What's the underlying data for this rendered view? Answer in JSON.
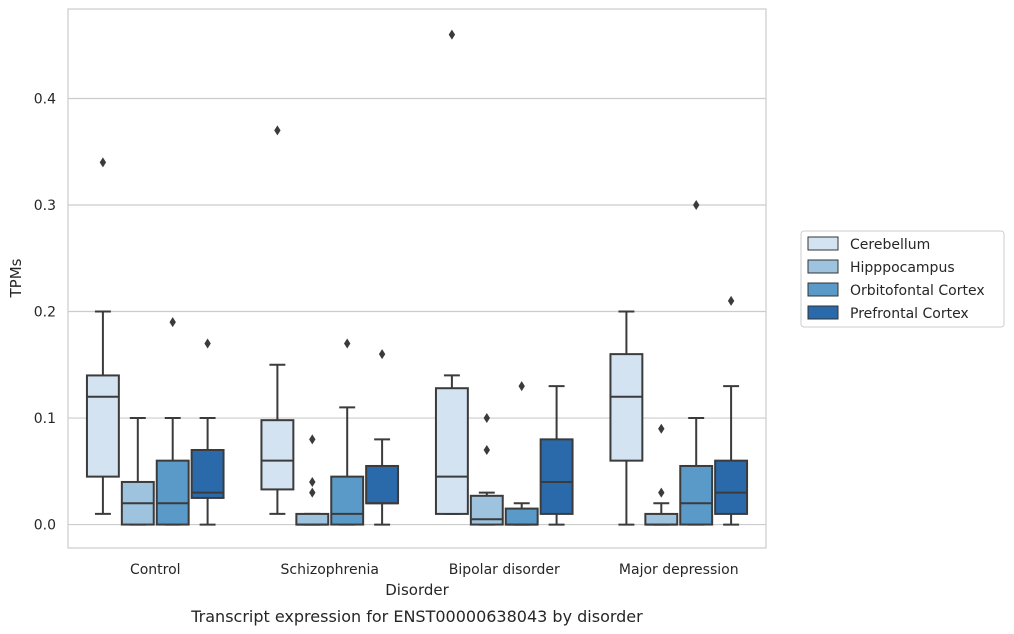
{
  "caption": "Transcript expression for ENST00000638043 by disorder",
  "chart_data": {
    "type": "box",
    "title": "",
    "xlabel": "Disorder",
    "ylabel": "TPMs",
    "ylim": [
      -0.022,
      0.484
    ],
    "yticks": [
      0.0,
      0.1,
      0.2,
      0.3,
      0.4
    ],
    "ytick_labels": [
      "0.0",
      "0.1",
      "0.2",
      "0.3",
      "0.4"
    ],
    "grid": "horizontal",
    "legend_position": "right",
    "categories": [
      "Control",
      "Schizophrenia",
      "Bipolar disorder",
      "Major depression"
    ],
    "series": [
      {
        "name": "Cerebellum",
        "color": "#d4e3f2",
        "boxes": [
          {
            "whisker_low": 0.01,
            "q1": 0.045,
            "median": 0.12,
            "q3": 0.14,
            "whisker_high": 0.2,
            "outliers": [
              0.34
            ]
          },
          {
            "whisker_low": 0.01,
            "q1": 0.033,
            "median": 0.06,
            "q3": 0.098,
            "whisker_high": 0.15,
            "outliers": [
              0.37
            ]
          },
          {
            "whisker_low": 0.01,
            "q1": 0.01,
            "median": 0.045,
            "q3": 0.128,
            "whisker_high": 0.14,
            "outliers": [
              0.46
            ]
          },
          {
            "whisker_low": 0.0,
            "q1": 0.06,
            "median": 0.12,
            "q3": 0.16,
            "whisker_high": 0.2,
            "outliers": []
          }
        ]
      },
      {
        "name": "Hipppocampus",
        "color": "#9dc3de",
        "boxes": [
          {
            "whisker_low": 0.0,
            "q1": 0.0,
            "median": 0.02,
            "q3": 0.04,
            "whisker_high": 0.1,
            "outliers": []
          },
          {
            "whisker_low": 0.0,
            "q1": 0.0,
            "median": 0.0,
            "q3": 0.01,
            "whisker_high": 0.01,
            "outliers": [
              0.03,
              0.04,
              0.08
            ]
          },
          {
            "whisker_low": 0.0,
            "q1": 0.0,
            "median": 0.005,
            "q3": 0.027,
            "whisker_high": 0.03,
            "outliers": [
              0.07,
              0.1
            ]
          },
          {
            "whisker_low": 0.0,
            "q1": 0.0,
            "median": 0.0,
            "q3": 0.01,
            "whisker_high": 0.02,
            "outliers": [
              0.03,
              0.09
            ]
          }
        ]
      },
      {
        "name": "Orbitofontal Cortex",
        "color": "#5a9ac8",
        "boxes": [
          {
            "whisker_low": 0.0,
            "q1": 0.0,
            "median": 0.02,
            "q3": 0.06,
            "whisker_high": 0.1,
            "outliers": [
              0.19
            ]
          },
          {
            "whisker_low": 0.0,
            "q1": 0.0,
            "median": 0.01,
            "q3": 0.045,
            "whisker_high": 0.11,
            "outliers": [
              0.17
            ]
          },
          {
            "whisker_low": 0.0,
            "q1": 0.0,
            "median": 0.0,
            "q3": 0.015,
            "whisker_high": 0.02,
            "outliers": [
              0.13
            ]
          },
          {
            "whisker_low": 0.0,
            "q1": 0.0,
            "median": 0.02,
            "q3": 0.055,
            "whisker_high": 0.1,
            "outliers": [
              0.3
            ]
          }
        ]
      },
      {
        "name": "Prefrontal Cortex",
        "color": "#2a6aab",
        "boxes": [
          {
            "whisker_low": 0.0,
            "q1": 0.025,
            "median": 0.03,
            "q3": 0.07,
            "whisker_high": 0.1,
            "outliers": [
              0.17
            ]
          },
          {
            "whisker_low": 0.0,
            "q1": 0.02,
            "median": 0.02,
            "q3": 0.055,
            "whisker_high": 0.08,
            "outliers": [
              0.16
            ]
          },
          {
            "whisker_low": 0.0,
            "q1": 0.01,
            "median": 0.04,
            "q3": 0.08,
            "whisker_high": 0.13,
            "outliers": []
          },
          {
            "whisker_low": 0.0,
            "q1": 0.01,
            "median": 0.03,
            "q3": 0.06,
            "whisker_high": 0.13,
            "outliers": [
              0.21
            ]
          }
        ]
      }
    ]
  }
}
